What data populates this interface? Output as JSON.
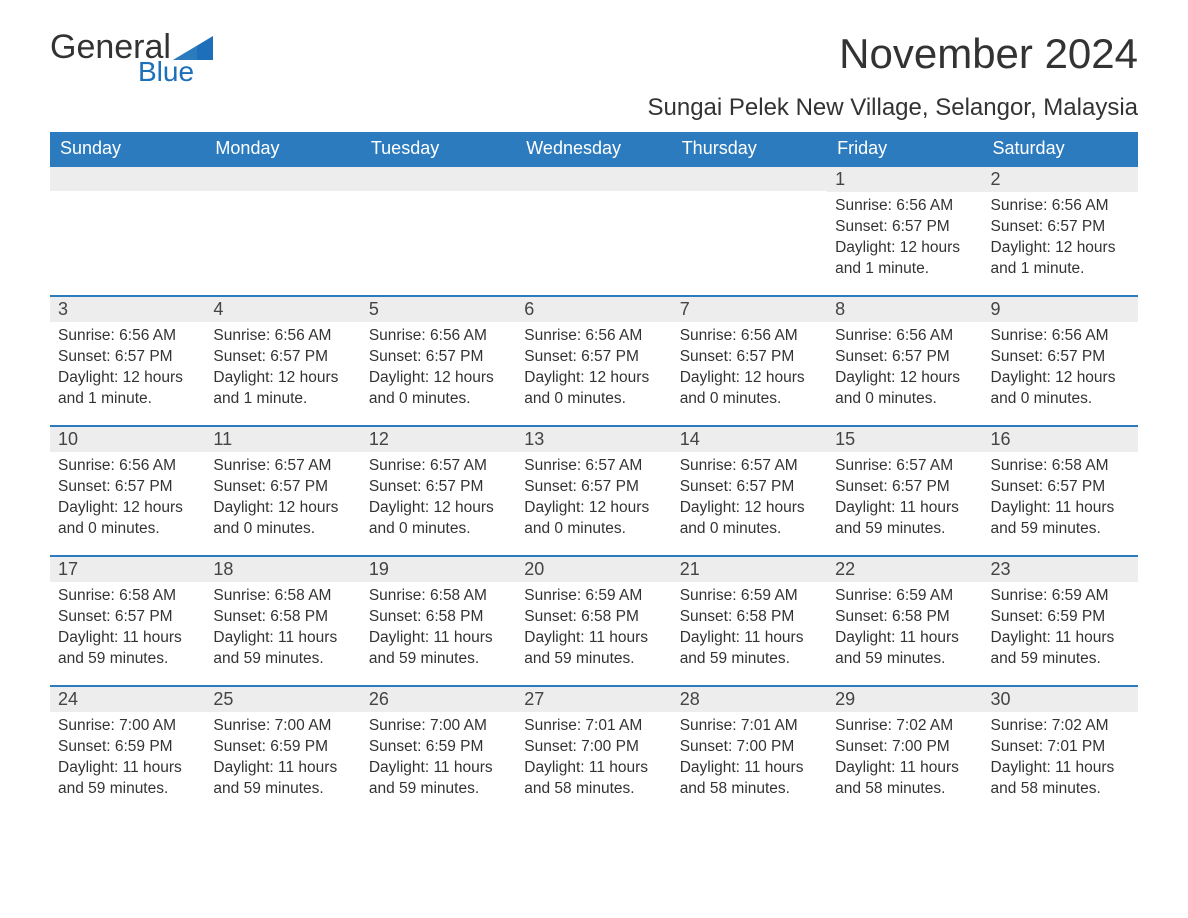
{
  "logo": {
    "word1": "General",
    "word2": "Blue"
  },
  "title": "November 2024",
  "location": "Sungai Pelek New Village, Selangor, Malaysia",
  "colors": {
    "header_bg": "#2c7bbf",
    "header_text": "#ffffff",
    "daynum_bg": "#ededed",
    "border": "#2c7bbf",
    "logo_blue": "#1c6fb8",
    "text": "#333333"
  },
  "weekdays": [
    "Sunday",
    "Monday",
    "Tuesday",
    "Wednesday",
    "Thursday",
    "Friday",
    "Saturday"
  ],
  "weeks": [
    [
      {
        "day": "",
        "sunrise": "",
        "sunset": "",
        "daylight": ""
      },
      {
        "day": "",
        "sunrise": "",
        "sunset": "",
        "daylight": ""
      },
      {
        "day": "",
        "sunrise": "",
        "sunset": "",
        "daylight": ""
      },
      {
        "day": "",
        "sunrise": "",
        "sunset": "",
        "daylight": ""
      },
      {
        "day": "",
        "sunrise": "",
        "sunset": "",
        "daylight": ""
      },
      {
        "day": "1",
        "sunrise": "Sunrise: 6:56 AM",
        "sunset": "Sunset: 6:57 PM",
        "daylight": "Daylight: 12 hours and 1 minute."
      },
      {
        "day": "2",
        "sunrise": "Sunrise: 6:56 AM",
        "sunset": "Sunset: 6:57 PM",
        "daylight": "Daylight: 12 hours and 1 minute."
      }
    ],
    [
      {
        "day": "3",
        "sunrise": "Sunrise: 6:56 AM",
        "sunset": "Sunset: 6:57 PM",
        "daylight": "Daylight: 12 hours and 1 minute."
      },
      {
        "day": "4",
        "sunrise": "Sunrise: 6:56 AM",
        "sunset": "Sunset: 6:57 PM",
        "daylight": "Daylight: 12 hours and 1 minute."
      },
      {
        "day": "5",
        "sunrise": "Sunrise: 6:56 AM",
        "sunset": "Sunset: 6:57 PM",
        "daylight": "Daylight: 12 hours and 0 minutes."
      },
      {
        "day": "6",
        "sunrise": "Sunrise: 6:56 AM",
        "sunset": "Sunset: 6:57 PM",
        "daylight": "Daylight: 12 hours and 0 minutes."
      },
      {
        "day": "7",
        "sunrise": "Sunrise: 6:56 AM",
        "sunset": "Sunset: 6:57 PM",
        "daylight": "Daylight: 12 hours and 0 minutes."
      },
      {
        "day": "8",
        "sunrise": "Sunrise: 6:56 AM",
        "sunset": "Sunset: 6:57 PM",
        "daylight": "Daylight: 12 hours and 0 minutes."
      },
      {
        "day": "9",
        "sunrise": "Sunrise: 6:56 AM",
        "sunset": "Sunset: 6:57 PM",
        "daylight": "Daylight: 12 hours and 0 minutes."
      }
    ],
    [
      {
        "day": "10",
        "sunrise": "Sunrise: 6:56 AM",
        "sunset": "Sunset: 6:57 PM",
        "daylight": "Daylight: 12 hours and 0 minutes."
      },
      {
        "day": "11",
        "sunrise": "Sunrise: 6:57 AM",
        "sunset": "Sunset: 6:57 PM",
        "daylight": "Daylight: 12 hours and 0 minutes."
      },
      {
        "day": "12",
        "sunrise": "Sunrise: 6:57 AM",
        "sunset": "Sunset: 6:57 PM",
        "daylight": "Daylight: 12 hours and 0 minutes."
      },
      {
        "day": "13",
        "sunrise": "Sunrise: 6:57 AM",
        "sunset": "Sunset: 6:57 PM",
        "daylight": "Daylight: 12 hours and 0 minutes."
      },
      {
        "day": "14",
        "sunrise": "Sunrise: 6:57 AM",
        "sunset": "Sunset: 6:57 PM",
        "daylight": "Daylight: 12 hours and 0 minutes."
      },
      {
        "day": "15",
        "sunrise": "Sunrise: 6:57 AM",
        "sunset": "Sunset: 6:57 PM",
        "daylight": "Daylight: 11 hours and 59 minutes."
      },
      {
        "day": "16",
        "sunrise": "Sunrise: 6:58 AM",
        "sunset": "Sunset: 6:57 PM",
        "daylight": "Daylight: 11 hours and 59 minutes."
      }
    ],
    [
      {
        "day": "17",
        "sunrise": "Sunrise: 6:58 AM",
        "sunset": "Sunset: 6:57 PM",
        "daylight": "Daylight: 11 hours and 59 minutes."
      },
      {
        "day": "18",
        "sunrise": "Sunrise: 6:58 AM",
        "sunset": "Sunset: 6:58 PM",
        "daylight": "Daylight: 11 hours and 59 minutes."
      },
      {
        "day": "19",
        "sunrise": "Sunrise: 6:58 AM",
        "sunset": "Sunset: 6:58 PM",
        "daylight": "Daylight: 11 hours and 59 minutes."
      },
      {
        "day": "20",
        "sunrise": "Sunrise: 6:59 AM",
        "sunset": "Sunset: 6:58 PM",
        "daylight": "Daylight: 11 hours and 59 minutes."
      },
      {
        "day": "21",
        "sunrise": "Sunrise: 6:59 AM",
        "sunset": "Sunset: 6:58 PM",
        "daylight": "Daylight: 11 hours and 59 minutes."
      },
      {
        "day": "22",
        "sunrise": "Sunrise: 6:59 AM",
        "sunset": "Sunset: 6:58 PM",
        "daylight": "Daylight: 11 hours and 59 minutes."
      },
      {
        "day": "23",
        "sunrise": "Sunrise: 6:59 AM",
        "sunset": "Sunset: 6:59 PM",
        "daylight": "Daylight: 11 hours and 59 minutes."
      }
    ],
    [
      {
        "day": "24",
        "sunrise": "Sunrise: 7:00 AM",
        "sunset": "Sunset: 6:59 PM",
        "daylight": "Daylight: 11 hours and 59 minutes."
      },
      {
        "day": "25",
        "sunrise": "Sunrise: 7:00 AM",
        "sunset": "Sunset: 6:59 PM",
        "daylight": "Daylight: 11 hours and 59 minutes."
      },
      {
        "day": "26",
        "sunrise": "Sunrise: 7:00 AM",
        "sunset": "Sunset: 6:59 PM",
        "daylight": "Daylight: 11 hours and 59 minutes."
      },
      {
        "day": "27",
        "sunrise": "Sunrise: 7:01 AM",
        "sunset": "Sunset: 7:00 PM",
        "daylight": "Daylight: 11 hours and 58 minutes."
      },
      {
        "day": "28",
        "sunrise": "Sunrise: 7:01 AM",
        "sunset": "Sunset: 7:00 PM",
        "daylight": "Daylight: 11 hours and 58 minutes."
      },
      {
        "day": "29",
        "sunrise": "Sunrise: 7:02 AM",
        "sunset": "Sunset: 7:00 PM",
        "daylight": "Daylight: 11 hours and 58 minutes."
      },
      {
        "day": "30",
        "sunrise": "Sunrise: 7:02 AM",
        "sunset": "Sunset: 7:01 PM",
        "daylight": "Daylight: 11 hours and 58 minutes."
      }
    ]
  ]
}
